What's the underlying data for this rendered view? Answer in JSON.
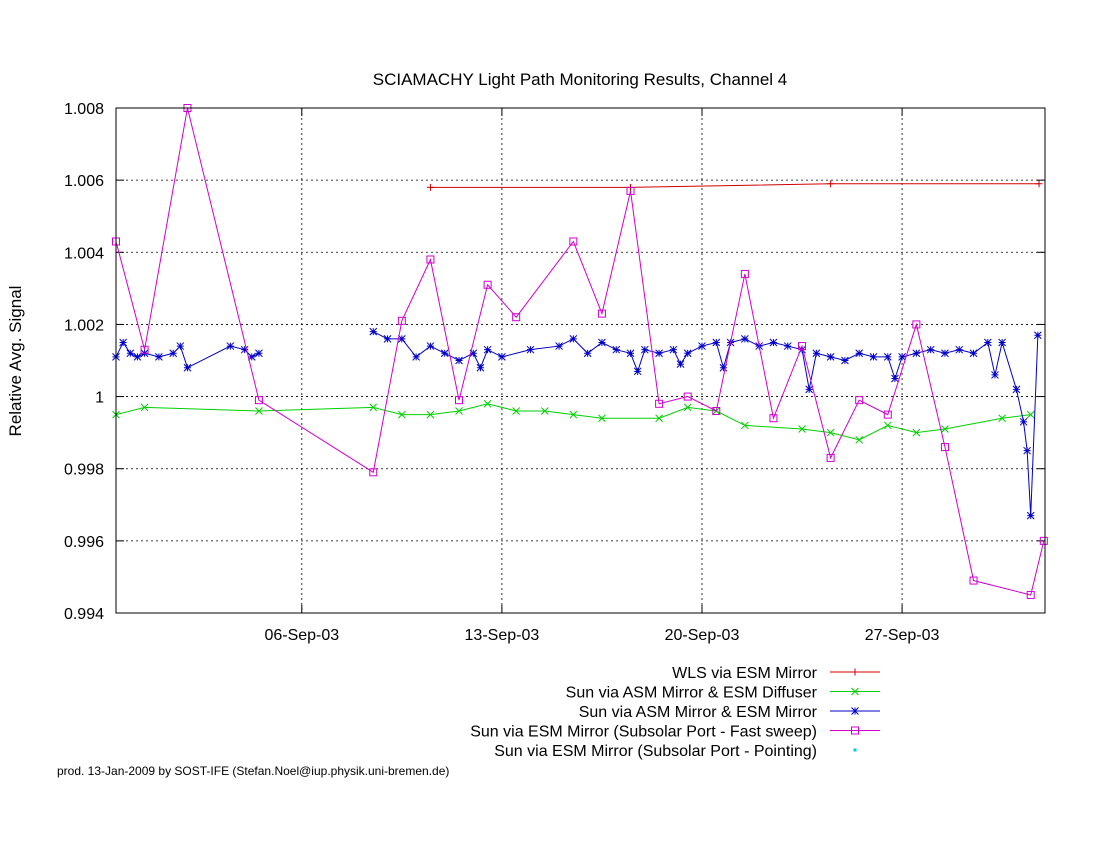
{
  "chart_data": {
    "type": "line",
    "title": "SCIAMACHY Light Path Monitoring Results, Channel 4",
    "xlabel": "",
    "ylabel": "Relative Avg. Signal",
    "x_unit": "date",
    "xlim": [
      "2003-08-30T12:00",
      "2003-10-02"
    ],
    "ylim": [
      0.994,
      1.008
    ],
    "x_ticks": [
      {
        "x": "2003-09-06",
        "label": "06-Sep-03"
      },
      {
        "x": "2003-09-13",
        "label": "13-Sep-03"
      },
      {
        "x": "2003-09-20",
        "label": "20-Sep-03"
      },
      {
        "x": "2003-09-27",
        "label": "27-Sep-03"
      }
    ],
    "y_ticks": [
      {
        "y": 0.994,
        "label": "0.994"
      },
      {
        "y": 0.996,
        "label": "0.996"
      },
      {
        "y": 0.998,
        "label": "0.998"
      },
      {
        "y": 1.0,
        "label": "1"
      },
      {
        "y": 1.002,
        "label": "1.002"
      },
      {
        "y": 1.004,
        "label": "1.004"
      },
      {
        "y": 1.006,
        "label": "1.006"
      },
      {
        "y": 1.008,
        "label": "1.008"
      }
    ],
    "grid": true,
    "legend_position": "below",
    "series": [
      {
        "name": "WLS via ESM Mirror",
        "color": "#d00000",
        "marker": "plus",
        "points": [
          [
            "2003-09-10T12:00",
            1.0058
          ],
          [
            "2003-09-17T12:00",
            1.0058
          ],
          [
            "2003-09-24T12:00",
            1.0059
          ],
          [
            "2003-10-01T19:00",
            1.0059
          ]
        ]
      },
      {
        "name": "Sun via ASM Mirror & ESM Diffuser",
        "color": "#00d000",
        "marker": "cross",
        "points": [
          [
            "2003-08-30T12:00",
            0.9995
          ],
          [
            "2003-08-31T12:00",
            0.9997
          ],
          [
            "2003-09-04T12:00",
            0.9996
          ],
          [
            "2003-09-08T12:00",
            0.9997
          ],
          [
            "2003-09-09T12:00",
            0.9995
          ],
          [
            "2003-09-10T12:00",
            0.9995
          ],
          [
            "2003-09-11T12:00",
            0.9996
          ],
          [
            "2003-09-12T12:00",
            0.9998
          ],
          [
            "2003-09-13T12:00",
            0.9996
          ],
          [
            "2003-09-14T12:00",
            0.9996
          ],
          [
            "2003-09-15T12:00",
            0.9995
          ],
          [
            "2003-09-16T12:00",
            0.9994
          ],
          [
            "2003-09-18T12:00",
            0.9994
          ],
          [
            "2003-09-19T12:00",
            0.9997
          ],
          [
            "2003-09-20T12:00",
            0.9996
          ],
          [
            "2003-09-21T12:00",
            0.9992
          ],
          [
            "2003-09-23T12:00",
            0.9991
          ],
          [
            "2003-09-24T12:00",
            0.999
          ],
          [
            "2003-09-25T12:00",
            0.9988
          ],
          [
            "2003-09-26T12:00",
            0.9992
          ],
          [
            "2003-09-27T12:00",
            0.999
          ],
          [
            "2003-09-28T12:00",
            0.9991
          ],
          [
            "2003-09-30T12:00",
            0.9994
          ],
          [
            "2003-10-01T12:00",
            0.9995
          ]
        ]
      },
      {
        "name": "Sun via ASM Mirror & ESM Mirror",
        "color": "#0000c8",
        "marker": "star",
        "points": [
          [
            "2003-08-30T12:00",
            1.0011
          ],
          [
            "2003-08-30T18:00",
            1.0015
          ],
          [
            "2003-08-31T00:00",
            1.0012
          ],
          [
            "2003-08-31T06:00",
            1.0011
          ],
          [
            "2003-08-31T12:00",
            1.0012
          ],
          [
            "2003-09-01T00:00",
            1.0011
          ],
          [
            "2003-09-01T12:00",
            1.0012
          ],
          [
            "2003-09-01T18:00",
            1.0014
          ],
          [
            "2003-09-02T00:00",
            1.0008
          ],
          [
            "2003-09-03T12:00",
            1.0014
          ],
          [
            "2003-09-04T00:00",
            1.0013
          ],
          [
            "2003-09-04T06:00",
            1.0011
          ],
          [
            "2003-09-04T12:00",
            1.0012
          ],
          [
            "2003-09-08T12:00",
            1.0018
          ],
          [
            "2003-09-09T00:00",
            1.0016
          ],
          [
            "2003-09-09T12:00",
            1.0016
          ],
          [
            "2003-09-10T00:00",
            1.0011
          ],
          [
            "2003-09-10T12:00",
            1.0014
          ],
          [
            "2003-09-11T00:00",
            1.0012
          ],
          [
            "2003-09-11T12:00",
            1.001
          ],
          [
            "2003-09-12T00:00",
            1.0012
          ],
          [
            "2003-09-12T06:00",
            1.0008
          ],
          [
            "2003-09-12T12:00",
            1.0013
          ],
          [
            "2003-09-13T00:00",
            1.0011
          ],
          [
            "2003-09-14T00:00",
            1.0013
          ],
          [
            "2003-09-15T00:00",
            1.0014
          ],
          [
            "2003-09-15T12:00",
            1.0016
          ],
          [
            "2003-09-16T00:00",
            1.0012
          ],
          [
            "2003-09-16T12:00",
            1.0015
          ],
          [
            "2003-09-17T00:00",
            1.0013
          ],
          [
            "2003-09-17T12:00",
            1.0012
          ],
          [
            "2003-09-17T18:00",
            1.0007
          ],
          [
            "2003-09-18T00:00",
            1.0013
          ],
          [
            "2003-09-18T12:00",
            1.0012
          ],
          [
            "2003-09-19T00:00",
            1.0013
          ],
          [
            "2003-09-19T06:00",
            1.0009
          ],
          [
            "2003-09-19T12:00",
            1.0012
          ],
          [
            "2003-09-20T00:00",
            1.0014
          ],
          [
            "2003-09-20T12:00",
            1.0015
          ],
          [
            "2003-09-20T18:00",
            1.0008
          ],
          [
            "2003-09-21T00:00",
            1.0015
          ],
          [
            "2003-09-21T12:00",
            1.0016
          ],
          [
            "2003-09-22T00:00",
            1.0014
          ],
          [
            "2003-09-22T12:00",
            1.0015
          ],
          [
            "2003-09-23T00:00",
            1.0014
          ],
          [
            "2003-09-23T12:00",
            1.0013
          ],
          [
            "2003-09-23T18:00",
            1.0002
          ],
          [
            "2003-09-24T00:00",
            1.0012
          ],
          [
            "2003-09-24T12:00",
            1.0011
          ],
          [
            "2003-09-25T00:00",
            1.001
          ],
          [
            "2003-09-25T12:00",
            1.0012
          ],
          [
            "2003-09-26T00:00",
            1.0011
          ],
          [
            "2003-09-26T12:00",
            1.0011
          ],
          [
            "2003-09-26T18:00",
            1.0005
          ],
          [
            "2003-09-27T00:00",
            1.0011
          ],
          [
            "2003-09-27T12:00",
            1.0012
          ],
          [
            "2003-09-28T00:00",
            1.0013
          ],
          [
            "2003-09-28T12:00",
            1.0012
          ],
          [
            "2003-09-29T00:00",
            1.0013
          ],
          [
            "2003-09-29T12:00",
            1.0012
          ],
          [
            "2003-09-30T00:00",
            1.0015
          ],
          [
            "2003-09-30T06:00",
            1.0006
          ],
          [
            "2003-09-30T12:00",
            1.0015
          ],
          [
            "2003-10-01T00:00",
            1.0002
          ],
          [
            "2003-10-01T06:00",
            0.9993
          ],
          [
            "2003-10-01T09:00",
            0.9985
          ],
          [
            "2003-10-01T12:00",
            0.9967
          ],
          [
            "2003-10-01T18:00",
            1.0017
          ]
        ]
      },
      {
        "name": "Sun via ESM Mirror (Subsolar Port - Fast sweep)",
        "color": "#d000d0",
        "marker": "square",
        "points": [
          [
            "2003-08-30T12:00",
            1.0043
          ],
          [
            "2003-08-31T12:00",
            1.0013
          ],
          [
            "2003-09-02T00:00",
            1.008
          ],
          [
            "2003-09-04T12:00",
            0.9999
          ],
          [
            "2003-09-08T12:00",
            0.9979
          ],
          [
            "2003-09-09T12:00",
            1.0021
          ],
          [
            "2003-09-10T12:00",
            1.0038
          ],
          [
            "2003-09-11T12:00",
            0.9999
          ],
          [
            "2003-09-12T12:00",
            1.0031
          ],
          [
            "2003-09-13T12:00",
            1.0022
          ],
          [
            "2003-09-15T12:00",
            1.0043
          ],
          [
            "2003-09-16T12:00",
            1.0023
          ],
          [
            "2003-09-17T12:00",
            1.0057
          ],
          [
            "2003-09-18T12:00",
            0.9998
          ],
          [
            "2003-09-19T12:00",
            1.0
          ],
          [
            "2003-09-20T12:00",
            0.9996
          ],
          [
            "2003-09-21T12:00",
            1.0034
          ],
          [
            "2003-09-22T12:00",
            0.9994
          ],
          [
            "2003-09-23T12:00",
            1.0014
          ],
          [
            "2003-09-24T12:00",
            0.9983
          ],
          [
            "2003-09-25T12:00",
            0.9999
          ],
          [
            "2003-09-26T12:00",
            0.9995
          ],
          [
            "2003-09-27T12:00",
            1.002
          ],
          [
            "2003-09-28T12:00",
            0.9986
          ],
          [
            "2003-09-29T12:00",
            0.9949
          ],
          [
            "2003-10-01T12:00",
            0.9945
          ],
          [
            "2003-10-01T23:00",
            0.996
          ]
        ]
      },
      {
        "name": "Sun via ESM Mirror (Subsolar Port - Pointing)",
        "color": "#00c8e6",
        "marker": "dot",
        "points": []
      }
    ]
  },
  "footer": "prod. 13-Jan-2009 by SOST-IFE (Stefan.Noel@iup.physik.uni-bremen.de)"
}
